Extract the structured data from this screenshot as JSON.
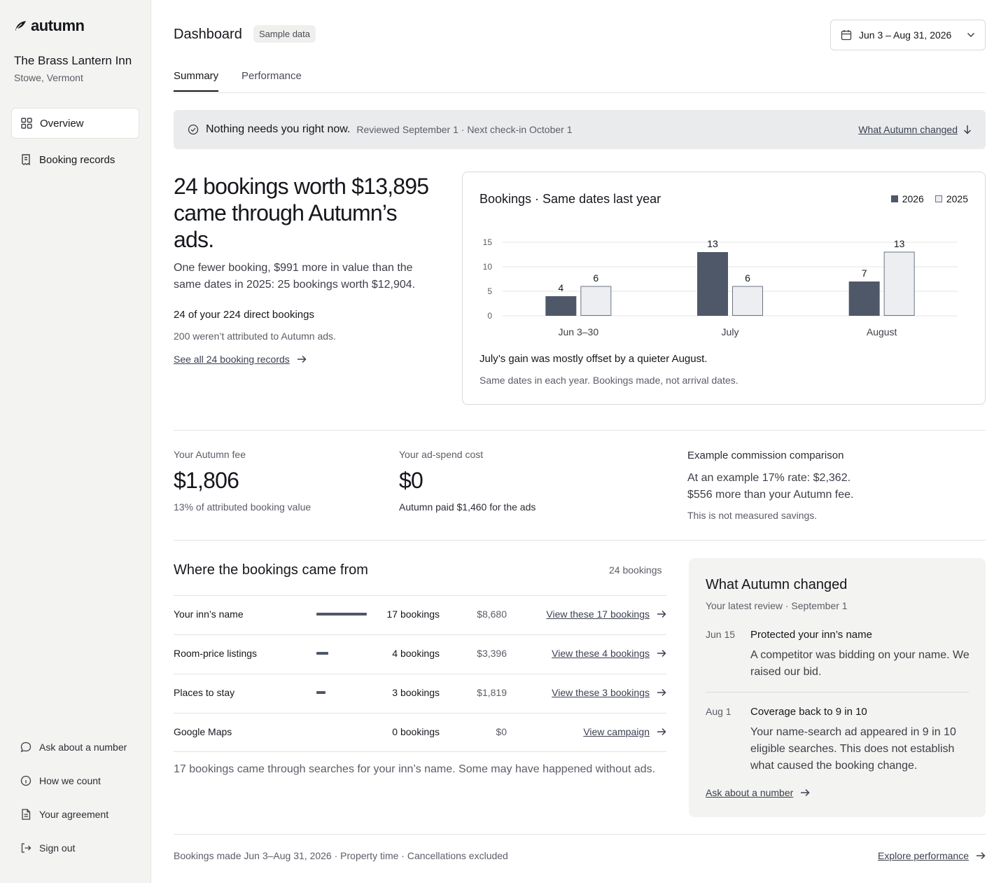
{
  "app": {
    "logo_text": "autumn",
    "property_name": "The Brass Lantern Inn",
    "property_location": "Stowe, Vermont"
  },
  "sidebar": {
    "nav": [
      {
        "label": "Overview",
        "icon": "grid-icon",
        "active": true
      },
      {
        "label": "Booking records",
        "icon": "receipt-icon",
        "active": false
      }
    ],
    "footer": [
      {
        "label": "Ask about a number",
        "icon": "chat-bubble-icon"
      },
      {
        "label": "How we count",
        "icon": "info-icon"
      },
      {
        "label": "Your agreement",
        "icon": "document-icon"
      },
      {
        "label": "Sign out",
        "icon": "sign-out-icon"
      }
    ]
  },
  "header": {
    "title": "Dashboard",
    "badge": "Sample data",
    "date_range": "Jun 3 – Aug 31, 2026",
    "tabs": [
      {
        "label": "Summary",
        "active": true
      },
      {
        "label": "Performance",
        "active": false
      }
    ]
  },
  "banner": {
    "headline": "Nothing needs you right now.",
    "detail": "Reviewed September 1 · Next check-in October 1",
    "link": "What Autumn changed"
  },
  "summary": {
    "hero": "24 bookings worth $13,895 came through Autumn’s ads.",
    "hero_sub": "One fewer booking, $991 more in value than the same dates in 2025: 25 bookings worth $12,904.",
    "direct_line": "24 of your 224 direct bookings",
    "direct_sub": "200 weren’t attributed to Autumn ads.",
    "see_all_link": "See all 24 booking records"
  },
  "chart_data": {
    "type": "bar",
    "title": "Bookings · Same dates last year",
    "categories": [
      "Jun 3–30",
      "July",
      "August"
    ],
    "series": [
      {
        "name": "2026",
        "values": [
          4,
          13,
          7
        ],
        "color": "#4f5868"
      },
      {
        "name": "2025",
        "values": [
          6,
          6,
          13
        ],
        "color": "#eceef2"
      }
    ],
    "yticks": [
      0,
      5,
      10,
      15
    ],
    "ylim": [
      0,
      15
    ],
    "legend": "top-right",
    "grid": true,
    "note": "July’s gain was mostly offset by a quieter August.",
    "footnote": "Same dates in each year. Bookings made, not arrival dates."
  },
  "stats": {
    "fee_label": "Your Autumn fee",
    "fee_value": "$1,806",
    "fee_sub": "13% of attributed booking value",
    "spend_label": "Your ad-spend cost",
    "spend_value": "$0",
    "spend_sub": "Autumn paid $1,460 for the ads",
    "compare_title": "Example commission comparison",
    "compare_line1": "At an example 17% rate: $2,362.",
    "compare_line2": "$556 more than your Autumn fee.",
    "compare_note": "This is not measured savings."
  },
  "sources": {
    "title": "Where the bookings came from",
    "count": "24 bookings",
    "rows": [
      {
        "name": "Your inn’s name",
        "bookings": "17 bookings",
        "value": "$8,680",
        "link": "View these 17 bookings",
        "share": 0.708
      },
      {
        "name": "Room-price listings",
        "bookings": "4 bookings",
        "value": "$3,396",
        "link": "View these 4 bookings",
        "share": 0.167
      },
      {
        "name": "Places to stay",
        "bookings": "3 bookings",
        "value": "$1,819",
        "link": "View these 3 bookings",
        "share": 0.125
      },
      {
        "name": "Google Maps",
        "bookings": "0 bookings",
        "value": "$0",
        "link": "View campaign",
        "share": 0
      }
    ],
    "footnote": "17 bookings came through searches for your inn’s name. Some may have happened without ads."
  },
  "changes": {
    "title": "What Autumn changed",
    "subtitle": "Your latest review · September 1",
    "items": [
      {
        "date": "Jun 15",
        "heading": "Protected your inn’s name",
        "body": "A competitor was bidding on your name. We raised our bid."
      },
      {
        "date": "Aug 1",
        "heading": "Coverage back to 9 in 10",
        "body": "Your name-search ad appeared in 9 in 10 eligible searches. This does not establish what caused the booking change."
      }
    ],
    "link": "Ask about a number"
  },
  "footer": {
    "text": "Bookings made Jun 3–Aug 31, 2026 · Property time · Cancellations excluded",
    "link": "Explore performance"
  }
}
